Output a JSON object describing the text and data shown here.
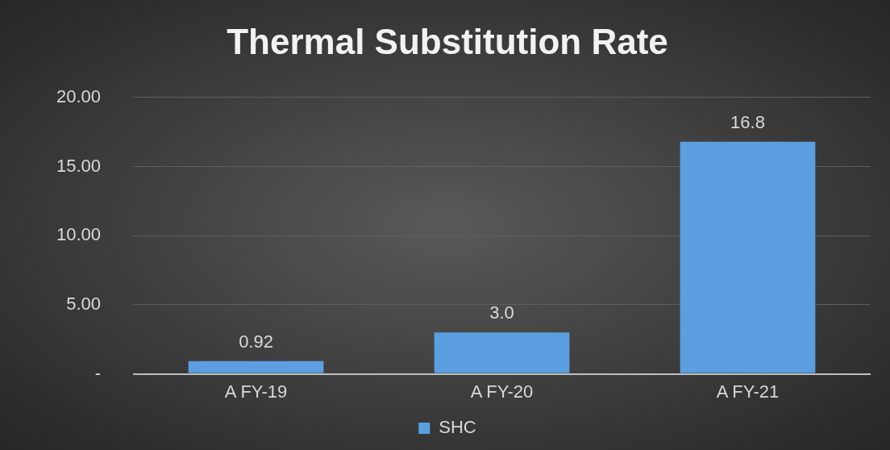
{
  "chart_data": {
    "type": "bar",
    "title": "Thermal Substitution Rate",
    "categories": [
      "A FY-19",
      "A FY-20",
      "A FY-21"
    ],
    "series": [
      {
        "name": "SHC",
        "color": "#5b9fe0",
        "values": [
          0.92,
          3.0,
          16.8
        ],
        "value_labels": [
          "0.92",
          "3.0",
          "16.8"
        ]
      }
    ],
    "ylim": [
      0,
      20
    ],
    "yticks": [
      {
        "value": 0,
        "label": "-"
      },
      {
        "value": 5,
        "label": "5.00"
      },
      {
        "value": 10,
        "label": "10.00"
      },
      {
        "value": 15,
        "label": "15.00"
      },
      {
        "value": 20,
        "label": "20.00"
      }
    ],
    "grid": "y",
    "legend": "bottom"
  }
}
